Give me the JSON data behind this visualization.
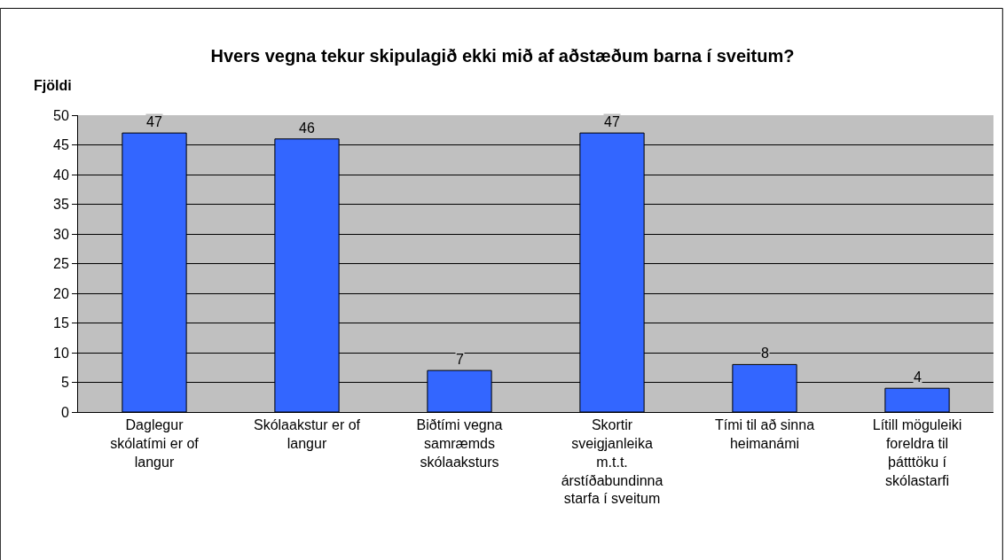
{
  "chart_data": {
    "type": "bar",
    "title": "Hvers vegna tekur skipulagið ekki mið af aðstæðum barna í sveitum?",
    "ylabel": "Fjöldi",
    "categories": [
      "Daglegur skólatími er of langur",
      "Skólaakstur er of langur",
      "Biðtími vegna samræmds skólaaksturs",
      "Skortir sveigjanleika m.t.t. árstíðabundinna starfa í sveitum",
      "Tími til að sinna heimanámi",
      "Lítill möguleiki foreldra til þátttöku í skólastarfi"
    ],
    "values": [
      47,
      46,
      7,
      47,
      8,
      4
    ],
    "color": "#3366ff",
    "data_labels": true,
    "ylim": [
      0,
      50
    ],
    "yticks": [
      0,
      5,
      10,
      15,
      20,
      25,
      30,
      35,
      40,
      45,
      50
    ],
    "grid": "y"
  }
}
